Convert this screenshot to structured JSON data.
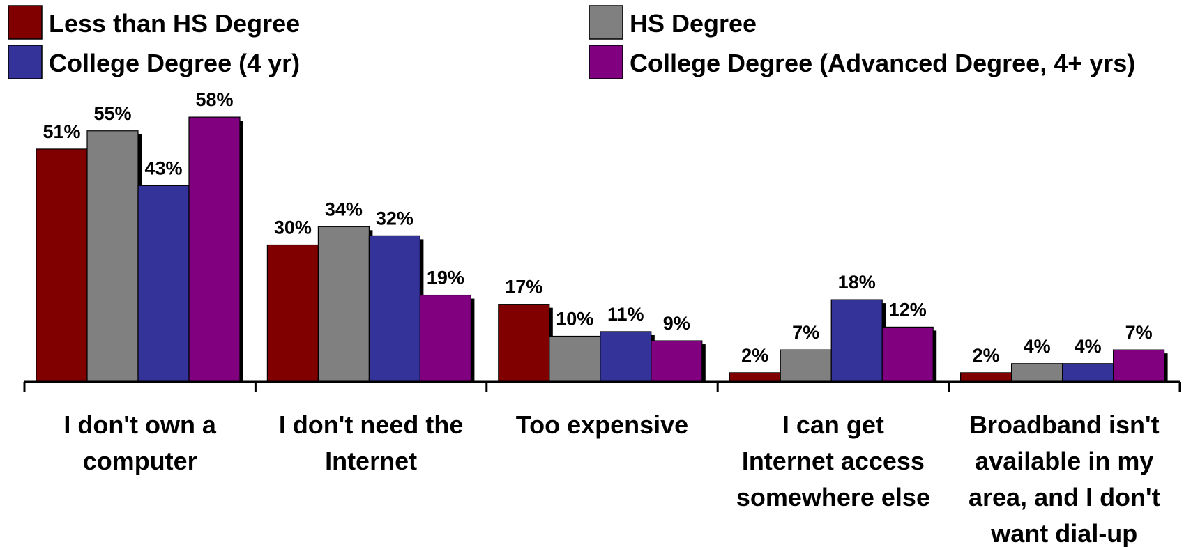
{
  "chart_data": {
    "type": "bar",
    "categories": [
      [
        "I don't own a",
        "computer"
      ],
      [
        "I don't need the",
        "Internet"
      ],
      [
        "Too expensive"
      ],
      [
        "I can get",
        "Internet access",
        "somewhere else"
      ],
      [
        "Broadband isn't",
        "available in my",
        "area, and I don't",
        "want dial-up"
      ]
    ],
    "series": [
      {
        "name": "Less than HS Degree",
        "color": "#800000",
        "values": [
          51,
          30,
          17,
          2,
          2
        ],
        "labels": [
          "51%",
          "30%",
          "17%",
          "2%",
          "2%"
        ]
      },
      {
        "name": "HS Degree",
        "color": "#808080",
        "values": [
          55,
          34,
          10,
          7,
          4
        ],
        "labels": [
          "55%",
          "34%",
          "10%",
          "7%",
          "4%"
        ]
      },
      {
        "name": "College Degree (4 yr)",
        "color": "#333399",
        "values": [
          43,
          32,
          11,
          18,
          4
        ],
        "labels": [
          "43%",
          "32%",
          "11%",
          "18%",
          "4%"
        ]
      },
      {
        "name": "College Degree (Advanced Degree, 4+ yrs)",
        "color": "#800080",
        "values": [
          58,
          19,
          9,
          12,
          7
        ],
        "labels": [
          "58%",
          "19%",
          "9%",
          "12%",
          "7%"
        ]
      }
    ],
    "ylim": [
      0,
      60
    ],
    "grid": false,
    "legend_position": "top"
  }
}
